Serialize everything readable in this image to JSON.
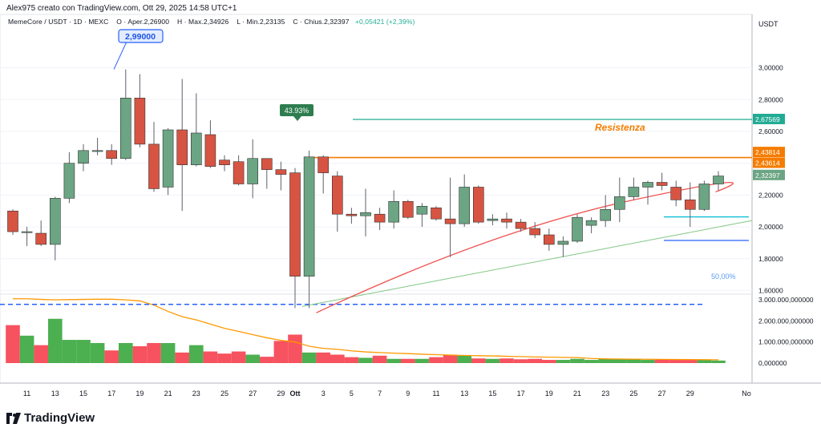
{
  "header": {
    "author_line": "Alex975 creato con TradingView.com, Ott 29, 2025 14:58 UTC+1"
  },
  "legend": {
    "symbol": "MemeCore / USDT · 1D · MEXC",
    "open": "O · Aper.2,26900",
    "high": "H · Max.2,34926",
    "low": "L · Min.2,23135",
    "close": "C · Chius.2,32397",
    "change": "+0,05421 (+2,39%)"
  },
  "brand": {
    "name": "TradingView"
  },
  "colors": {
    "up": "#6ba583",
    "down": "#d75442",
    "vol_up": "#4caf50",
    "vol_down": "#f7525f",
    "resistance": "#f57c00",
    "cyan": "#22ab94",
    "ema": "#ef5350",
    "trend": "#81c784",
    "blue_dashed": "#2962ff",
    "vol_ma": "#ff9800"
  },
  "chart_data": {
    "type": "candlestick",
    "currency": "USDT",
    "price_axis": {
      "ticks": [
        "3,00000",
        "2,80000",
        "2,60000",
        "2,40000",
        "2,20000",
        "2,00000",
        "1,80000",
        "1,60000"
      ],
      "values": [
        3.0,
        2.8,
        2.6,
        2.4,
        2.2,
        2.0,
        1.8,
        1.6
      ]
    },
    "volume_axis": {
      "ticks": [
        "3.000.000,000000",
        "2.000.000,000000",
        "1.000.000,000000",
        "0,000000"
      ],
      "values": [
        3000000,
        2000000,
        1000000,
        0
      ]
    },
    "x_ticks": [
      "11",
      "13",
      "15",
      "17",
      "19",
      "21",
      "23",
      "25",
      "27",
      "29",
      "Ott",
      "3",
      "5",
      "7",
      "9",
      "11",
      "13",
      "15",
      "17",
      "19",
      "21",
      "23",
      "25",
      "27",
      "29",
      "No"
    ],
    "x_tick_index": [
      1,
      3,
      5,
      7,
      9,
      11,
      13,
      15,
      17,
      19,
      20,
      22,
      24,
      26,
      28,
      30,
      32,
      34,
      36,
      38,
      40,
      42,
      44,
      46,
      48,
      50
    ],
    "candles": [
      {
        "o": 2.1,
        "h": 2.11,
        "l": 1.95,
        "c": 1.97
      },
      {
        "o": 1.97,
        "h": 2.0,
        "l": 1.88,
        "c": 1.97
      },
      {
        "o": 1.96,
        "h": 2.04,
        "l": 1.88,
        "c": 1.89
      },
      {
        "o": 1.89,
        "h": 2.19,
        "l": 1.79,
        "c": 2.18
      },
      {
        "o": 2.18,
        "h": 2.47,
        "l": 2.15,
        "c": 2.4
      },
      {
        "o": 2.4,
        "h": 2.52,
        "l": 2.35,
        "c": 2.48
      },
      {
        "o": 2.48,
        "h": 2.56,
        "l": 2.45,
        "c": 2.48
      },
      {
        "o": 2.48,
        "h": 2.52,
        "l": 2.39,
        "c": 2.43
      },
      {
        "o": 2.43,
        "h": 2.99,
        "l": 2.42,
        "c": 2.81
      },
      {
        "o": 2.81,
        "h": 2.96,
        "l": 2.5,
        "c": 2.52
      },
      {
        "o": 2.52,
        "h": 2.66,
        "l": 2.22,
        "c": 2.24
      },
      {
        "o": 2.25,
        "h": 2.62,
        "l": 2.2,
        "c": 2.61
      },
      {
        "o": 2.61,
        "h": 2.93,
        "l": 2.1,
        "c": 2.39
      },
      {
        "o": 2.39,
        "h": 2.84,
        "l": 2.38,
        "c": 2.59
      },
      {
        "o": 2.58,
        "h": 2.67,
        "l": 2.37,
        "c": 2.38
      },
      {
        "o": 2.42,
        "h": 2.45,
        "l": 2.35,
        "c": 2.39
      },
      {
        "o": 2.41,
        "h": 2.45,
        "l": 2.26,
        "c": 2.27
      },
      {
        "o": 2.27,
        "h": 2.55,
        "l": 2.18,
        "c": 2.43
      },
      {
        "o": 2.43,
        "h": 2.43,
        "l": 2.24,
        "c": 2.36
      },
      {
        "o": 2.36,
        "h": 2.41,
        "l": 2.23,
        "c": 2.33
      },
      {
        "o": 2.34,
        "h": 2.37,
        "l": 1.49,
        "c": 1.69
      },
      {
        "o": 1.69,
        "h": 2.48,
        "l": 1.49,
        "c": 2.44
      },
      {
        "o": 2.44,
        "h": 2.45,
        "l": 2.21,
        "c": 2.34
      },
      {
        "o": 2.32,
        "h": 2.35,
        "l": 1.97,
        "c": 2.08
      },
      {
        "o": 2.08,
        "h": 2.12,
        "l": 2.02,
        "c": 2.07
      },
      {
        "o": 2.07,
        "h": 2.24,
        "l": 1.94,
        "c": 2.09
      },
      {
        "o": 2.08,
        "h": 2.12,
        "l": 1.98,
        "c": 2.03
      },
      {
        "o": 2.03,
        "h": 2.23,
        "l": 1.99,
        "c": 2.16
      },
      {
        "o": 2.16,
        "h": 2.17,
        "l": 2.05,
        "c": 2.06
      },
      {
        "o": 2.08,
        "h": 2.15,
        "l": 2.0,
        "c": 2.13
      },
      {
        "o": 2.12,
        "h": 2.13,
        "l": 2.04,
        "c": 2.05
      },
      {
        "o": 2.05,
        "h": 2.31,
        "l": 1.81,
        "c": 2.02
      },
      {
        "o": 2.02,
        "h": 2.33,
        "l": 2.0,
        "c": 2.25
      },
      {
        "o": 2.25,
        "h": 2.26,
        "l": 2.02,
        "c": 2.03
      },
      {
        "o": 2.04,
        "h": 2.08,
        "l": 2.01,
        "c": 2.05
      },
      {
        "o": 2.05,
        "h": 2.09,
        "l": 1.99,
        "c": 2.03
      },
      {
        "o": 2.03,
        "h": 2.05,
        "l": 1.97,
        "c": 1.99
      },
      {
        "o": 1.99,
        "h": 2.03,
        "l": 1.93,
        "c": 1.95
      },
      {
        "o": 1.95,
        "h": 1.99,
        "l": 1.85,
        "c": 1.89
      },
      {
        "o": 1.89,
        "h": 1.94,
        "l": 1.81,
        "c": 1.91
      },
      {
        "o": 1.91,
        "h": 2.08,
        "l": 1.9,
        "c": 2.06
      },
      {
        "o": 2.01,
        "h": 2.06,
        "l": 1.96,
        "c": 2.04
      },
      {
        "o": 2.04,
        "h": 2.2,
        "l": 2.0,
        "c": 2.11
      },
      {
        "o": 2.11,
        "h": 2.31,
        "l": 2.03,
        "c": 2.19
      },
      {
        "o": 2.19,
        "h": 2.31,
        "l": 2.17,
        "c": 2.25
      },
      {
        "o": 2.25,
        "h": 2.29,
        "l": 2.14,
        "c": 2.28
      },
      {
        "o": 2.28,
        "h": 2.34,
        "l": 2.23,
        "c": 2.26
      },
      {
        "o": 2.25,
        "h": 2.29,
        "l": 2.13,
        "c": 2.17
      },
      {
        "o": 2.17,
        "h": 2.28,
        "l": 2.0,
        "c": 2.11
      },
      {
        "o": 2.11,
        "h": 2.29,
        "l": 2.1,
        "c": 2.27
      },
      {
        "o": 2.27,
        "h": 2.35,
        "l": 2.23,
        "c": 2.32
      }
    ],
    "volumes": [
      1800000,
      1300000,
      850000,
      2100000,
      1100000,
      1100000,
      950000,
      600000,
      950000,
      800000,
      950000,
      950000,
      500000,
      850000,
      550000,
      450000,
      550000,
      400000,
      300000,
      1050000,
      1350000,
      500000,
      500000,
      400000,
      280000,
      250000,
      350000,
      200000,
      200000,
      200000,
      280000,
      400000,
      350000,
      220000,
      200000,
      220000,
      180000,
      200000,
      150000,
      150000,
      200000,
      150000,
      200000,
      200000,
      200000,
      150000,
      180000,
      150000,
      150000,
      160000,
      120000
    ],
    "volume_ma": [
      3050000,
      3050000,
      3020000,
      3000000,
      3010000,
      3020000,
      3030000,
      3030000,
      3000000,
      2950000,
      2750000,
      2450000,
      2200000,
      2050000,
      1850000,
      1650000,
      1500000,
      1350000,
      1200000,
      1080000,
      1000000,
      800000,
      700000,
      650000,
      580000,
      530000,
      500000,
      470000,
      450000,
      420000,
      400000,
      380000,
      360000,
      350000,
      340000,
      320000,
      310000,
      290000,
      280000,
      270000,
      260000,
      220000,
      200000,
      190000,
      185000,
      180000,
      175000,
      170000,
      165000,
      160000,
      155000
    ],
    "annotations": {
      "high_label": "2,99000",
      "pct_label": "43.93%",
      "resistance_label": "Resistenza",
      "fib_label": "50,00%"
    },
    "levels": {
      "cyan_level": 2.67569,
      "resistance": 2.43614,
      "resistance_upper": 2.43814,
      "last": 2.32397,
      "fib_50": 1.513,
      "support_1": 2.063,
      "support_2": 1.915
    },
    "axis_tags": {
      "cyan": "2,67569",
      "resistance_upper": "2,43814",
      "resistance": "2,43614",
      "last": "2,32397"
    }
  }
}
